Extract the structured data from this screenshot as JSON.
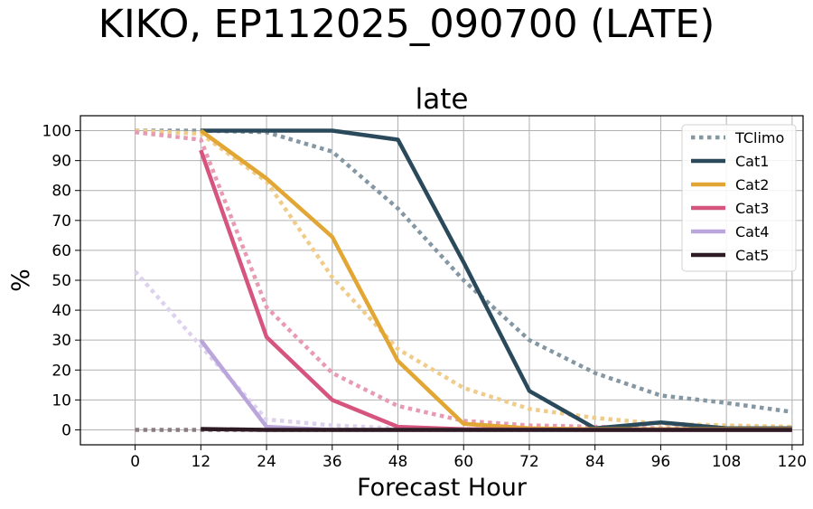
{
  "chart_data": {
    "type": "line",
    "suptitle": "KIKO, EP112025_090700 (LATE)",
    "title": "late",
    "xlabel": "Forecast Hour",
    "ylabel": "%",
    "xlim": [
      -10,
      122
    ],
    "ylim": [
      -5,
      105
    ],
    "xticks": [
      0,
      12,
      24,
      36,
      48,
      60,
      72,
      84,
      96,
      108,
      120
    ],
    "yticks": [
      0,
      10,
      20,
      30,
      40,
      50,
      60,
      70,
      80,
      90,
      100
    ],
    "grid": true,
    "legend_position": "top-right",
    "legend": [
      {
        "label": "TClimo",
        "color": "#8497a3",
        "style": "dotted"
      },
      {
        "label": "Cat1",
        "color": "#2a4a5c",
        "style": "solid"
      },
      {
        "label": "Cat2",
        "color": "#e2a634",
        "style": "solid"
      },
      {
        "label": "Cat3",
        "color": "#d6557f",
        "style": "solid"
      },
      {
        "label": "Cat4",
        "color": "#bba6dc",
        "style": "solid"
      },
      {
        "label": "Cat5",
        "color": "#2e1a22",
        "style": "solid"
      }
    ],
    "climo_series": [
      {
        "name": "Cat1",
        "color": "#8497a3",
        "x": [
          0,
          12,
          24,
          36,
          48,
          60,
          72,
          84,
          96,
          108,
          120
        ],
        "y": [
          100,
          100,
          99.5,
          93,
          74,
          50,
          30,
          19,
          11.5,
          9,
          6
        ]
      },
      {
        "name": "Cat2",
        "color": "#f0cc8a",
        "x": [
          0,
          12,
          24,
          36,
          48,
          60,
          72,
          84,
          96,
          108,
          120
        ],
        "y": [
          100,
          99,
          83,
          51,
          27,
          14,
          7,
          4,
          2,
          1.5,
          1
        ]
      },
      {
        "name": "Cat3",
        "color": "#e79ab2",
        "x": [
          0,
          12,
          24,
          36,
          48,
          60,
          72,
          84,
          96,
          108,
          120
        ],
        "y": [
          99.5,
          97,
          41,
          19,
          8,
          3,
          1.5,
          1,
          0.5,
          0.5,
          0.5
        ]
      },
      {
        "name": "Cat4",
        "color": "#ddd2ee",
        "x": [
          0,
          12,
          24,
          36,
          48,
          60,
          72,
          84,
          96,
          108,
          120
        ],
        "y": [
          53,
          28,
          3.5,
          1.5,
          0.5,
          0.3,
          0.2,
          0.1,
          0.1,
          0.1,
          0.1
        ]
      },
      {
        "name": "Cat5",
        "color": "#8a7c82",
        "x": [
          0,
          12,
          24,
          36,
          48,
          60,
          72,
          84,
          96,
          108,
          120
        ],
        "y": [
          0,
          0,
          0,
          0,
          0,
          0,
          0,
          0,
          0,
          0,
          0
        ]
      }
    ],
    "series": [
      {
        "name": "Cat1",
        "color": "#2a4a5c",
        "x": [
          12,
          24,
          36,
          48,
          60,
          72,
          84,
          96,
          108,
          120
        ],
        "y": [
          100,
          100,
          100,
          97,
          56,
          13,
          0.5,
          2.5,
          0.5,
          0.5
        ]
      },
      {
        "name": "Cat2",
        "color": "#e2a634",
        "x": [
          12,
          24,
          36,
          48,
          60,
          72,
          84,
          96,
          108,
          120
        ],
        "y": [
          100,
          84,
          64.5,
          23,
          2,
          0.5,
          0.2,
          0.2,
          0.2,
          0.2
        ]
      },
      {
        "name": "Cat3",
        "color": "#d6557f",
        "x": [
          12,
          24,
          36,
          48,
          60,
          72,
          84,
          96,
          108,
          120
        ],
        "y": [
          93.5,
          31,
          10,
          1,
          0.2,
          0.1,
          0,
          0,
          0,
          0
        ]
      },
      {
        "name": "Cat4",
        "color": "#bba6dc",
        "x": [
          12,
          24,
          36,
          48,
          60,
          72,
          84,
          96,
          108,
          120
        ],
        "y": [
          30,
          1,
          0,
          0,
          0,
          0,
          0,
          0,
          0,
          0
        ]
      },
      {
        "name": "Cat5",
        "color": "#2e1a22",
        "x": [
          12,
          24,
          36,
          48,
          60,
          72,
          84,
          96,
          108,
          120
        ],
        "y": [
          0.3,
          0,
          0,
          0,
          0,
          0,
          0,
          0,
          0,
          0
        ]
      }
    ]
  }
}
